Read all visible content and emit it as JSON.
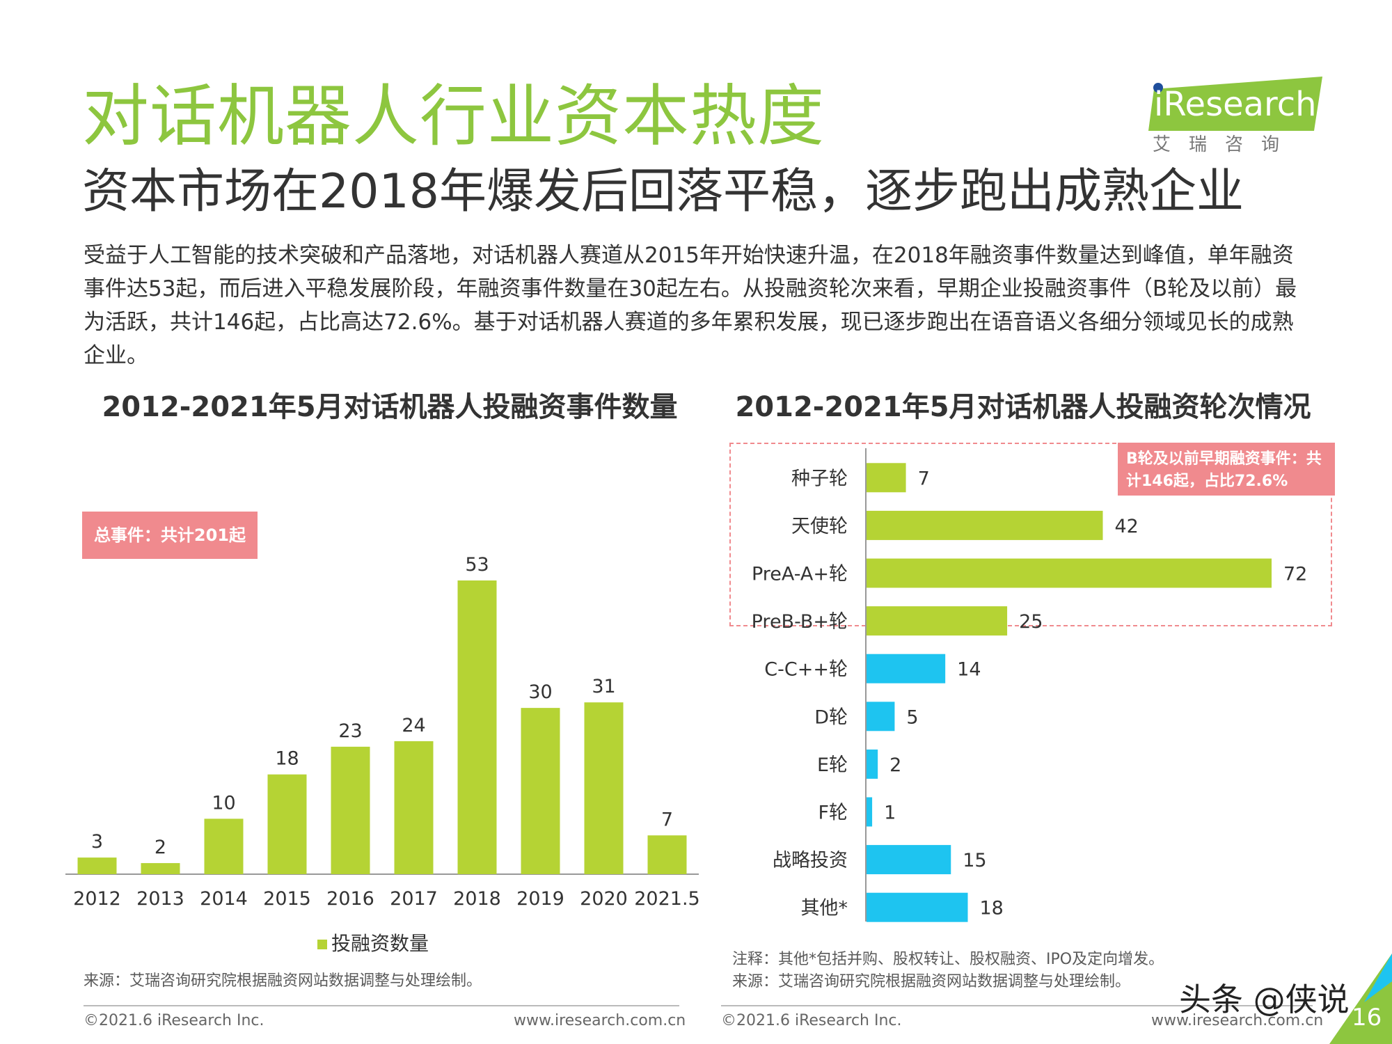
{
  "title": "对话机器人行业资本热度",
  "subtitle": "资本市场在2018年爆发后回落平稳，逐步跑出成熟企业",
  "summary": "受益于人工智能的技术突破和产品落地，对话机器人赛道从2015年开始快速升温，在2018年融资事件数量达到峰值，单年融资事件达53起，而后进入平稳发展阶段，年融资事件数量在30起左右。从投融资轮次来看，早期企业投融资事件（B轮及以前）最为活跃，共计146起，占比高达72.6%。基于对话机器人赛道的多年累积发展，现已逐步跑出在语音语义各细分领域见长的成熟企业。",
  "logo": {
    "text": "iResearch",
    "sub": "艾瑞咨询"
  },
  "colors": {
    "green": "#b5d334",
    "blue": "#1ec4f0",
    "pink": "#f08a8e",
    "title_green": "#8dc63f"
  },
  "chart_data": [
    {
      "type": "bar",
      "title": "2012-2021年5月对话机器人投融资事件数量",
      "categories": [
        "2012",
        "2013",
        "2014",
        "2015",
        "2016",
        "2017",
        "2018",
        "2019",
        "2020",
        "2021.5"
      ],
      "values": [
        3,
        2,
        10,
        18,
        23,
        24,
        53,
        30,
        31,
        7
      ],
      "legend": "投融资数量",
      "annotation": "总事件：共计201起",
      "ylim": [
        0,
        60
      ],
      "xlabel": "",
      "ylabel": "",
      "grid": false
    },
    {
      "type": "bar",
      "orientation": "horizontal",
      "title": "2012-2021年5月对话机器人投融资轮次情况",
      "categories": [
        "种子轮",
        "天使轮",
        "PreA-A+轮",
        "PreB-B+轮",
        "C-C++轮",
        "D轮",
        "E轮",
        "F轮",
        "战略投资",
        "其他*"
      ],
      "values": [
        7,
        42,
        72,
        25,
        14,
        5,
        2,
        1,
        15,
        18
      ],
      "group": [
        "early",
        "early",
        "early",
        "early",
        "late",
        "late",
        "late",
        "late",
        "late",
        "late"
      ],
      "annotation": "B轮及以前早期融资事件：共计146起，占比72.6%",
      "xlim": [
        0,
        80
      ]
    }
  ],
  "notes": {
    "left_source": "来源：艾瑞咨询研究院根据融资网站数据调整与处理绘制。",
    "right_note": "注释：其他*包括并购、股权转让、股权融资、IPO及定向增发。",
    "right_source": "来源：艾瑞咨询研究院根据融资网站数据调整与处理绘制。"
  },
  "footer": {
    "copyright": "©2021.6 iResearch Inc.",
    "url": "www.iresearch.com.cn",
    "page": "16",
    "watermark": "头条 @侠说"
  }
}
